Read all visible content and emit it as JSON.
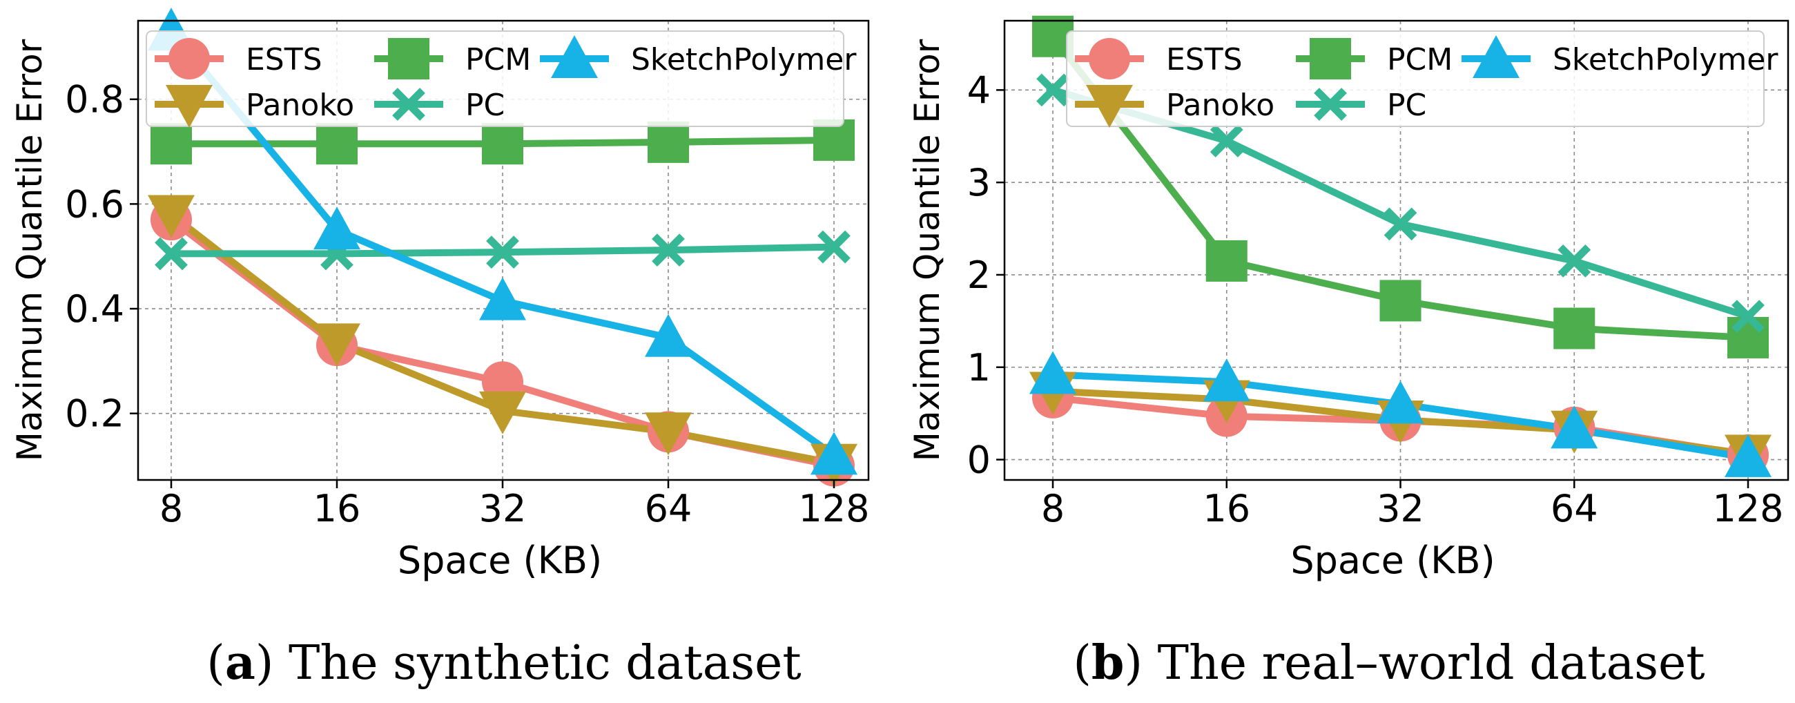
{
  "chart_data": [
    {
      "type": "line",
      "id": "a",
      "caption_label": "a",
      "caption_text": "The synthetic dataset",
      "xlabel": "Space (KB)",
      "ylabel": "Maximum Quantile Error",
      "categories": [
        "8",
        "16",
        "32",
        "64",
        "128"
      ],
      "yticks": [
        "0.2",
        "0.4",
        "0.6",
        "0.8"
      ],
      "ytick_values": [
        0.2,
        0.4,
        0.6,
        0.8
      ],
      "ylim": [
        0.073,
        0.95
      ],
      "grid": true,
      "legend_position": "top",
      "series": [
        {
          "name": "ESTS",
          "color": "#f07f7a",
          "marker": "circle",
          "values": [
            0.57,
            0.33,
            0.26,
            0.165,
            0.1
          ]
        },
        {
          "name": "Panoko",
          "color": "#bd9a2a",
          "marker": "triangle-down",
          "values": [
            0.58,
            0.335,
            0.205,
            0.165,
            0.105
          ]
        },
        {
          "name": "PCM",
          "color": "#4cae4c",
          "marker": "square",
          "values": [
            0.715,
            0.715,
            0.715,
            0.718,
            0.722
          ]
        },
        {
          "name": "PC",
          "color": "#36b795",
          "marker": "x",
          "values": [
            0.505,
            0.505,
            0.508,
            0.512,
            0.518
          ]
        },
        {
          "name": "SketchPolymer",
          "color": "#17b2e6",
          "marker": "triangle-up",
          "values": [
            0.93,
            0.55,
            0.415,
            0.345,
            0.12
          ]
        }
      ]
    },
    {
      "type": "line",
      "id": "b",
      "caption_label": "b",
      "caption_text": "The real–world dataset",
      "xlabel": "Space (KB)",
      "ylabel": "Maximum Quantile Error",
      "categories": [
        "8",
        "16",
        "32",
        "64",
        "128"
      ],
      "yticks": [
        "0",
        "1",
        "2",
        "3",
        "4"
      ],
      "ytick_values": [
        0,
        1,
        2,
        3,
        4
      ],
      "ylim": [
        -0.22,
        4.75
      ],
      "grid": true,
      "legend_position": "top-right",
      "series": [
        {
          "name": "ESTS",
          "color": "#f07f7a",
          "marker": "circle",
          "values": [
            0.67,
            0.47,
            0.42,
            0.35,
            0.05
          ]
        },
        {
          "name": "Panoko",
          "color": "#bd9a2a",
          "marker": "triangle-down",
          "values": [
            0.74,
            0.65,
            0.43,
            0.32,
            0.06
          ]
        },
        {
          "name": "PCM",
          "color": "#4cae4c",
          "marker": "square",
          "values": [
            4.58,
            2.15,
            1.72,
            1.42,
            1.32
          ]
        },
        {
          "name": "PC",
          "color": "#36b795",
          "marker": "x",
          "values": [
            4.0,
            3.45,
            2.55,
            2.15,
            1.55
          ]
        },
        {
          "name": "SketchPolymer",
          "color": "#17b2e6",
          "marker": "triangle-up",
          "values": [
            0.92,
            0.84,
            0.6,
            0.33,
            0.02
          ]
        }
      ]
    }
  ]
}
